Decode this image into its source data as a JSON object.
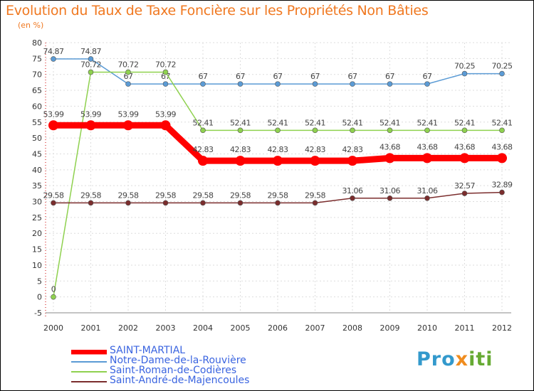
{
  "chart_data": {
    "type": "line",
    "title": "Evolution du Taux de Taxe Foncière sur les Propriétés Non Bâties",
    "subtitle": "(en %)",
    "categories": [
      "2000",
      "2001",
      "2002",
      "2003",
      "2004",
      "2005",
      "2006",
      "2007",
      "2008",
      "2009",
      "2010",
      "2011",
      "2012"
    ],
    "ylim": [
      -5,
      80
    ],
    "yticks": [
      -5,
      0,
      5,
      10,
      15,
      20,
      25,
      30,
      35,
      40,
      45,
      50,
      55,
      60,
      65,
      70,
      75,
      80
    ],
    "grid": true,
    "series": [
      {
        "name": "Notre-Dame-de-la-Rouvière",
        "color": "#5b9bd5",
        "values": [
          74.87,
          74.87,
          67,
          67,
          67,
          67,
          67,
          67,
          67,
          67,
          67,
          70.25,
          70.25
        ],
        "labels": [
          "74.87",
          "74.87",
          "67",
          "67",
          "67",
          "67",
          "67",
          "67",
          "67",
          "67",
          "67",
          "70.25",
          "70.25"
        ]
      },
      {
        "name": "Saint-Roman-de-Codières",
        "color": "#8fd14f",
        "values": [
          0,
          70.72,
          70.72,
          70.72,
          52.41,
          52.41,
          52.41,
          52.41,
          52.41,
          52.41,
          52.41,
          52.41,
          52.41
        ],
        "labels": [
          "0",
          "70.72",
          "70.72",
          "70.72",
          "52.41",
          "52.41",
          "52.41",
          "52.41",
          "52.41",
          "52.41",
          "52.41",
          "52.41",
          "52.41"
        ]
      },
      {
        "name": "SAINT-MARTIAL",
        "color": "#ff0000",
        "values": [
          53.99,
          53.99,
          53.99,
          53.99,
          42.83,
          42.83,
          42.83,
          42.83,
          42.83,
          43.68,
          43.68,
          43.68,
          43.68
        ],
        "labels": [
          "53.99",
          "53.99",
          "53.99",
          "53.99",
          "42.83",
          "42.83",
          "42.83",
          "42.83",
          "42.83",
          "43.68",
          "43.68",
          "43.68",
          "43.68"
        ]
      },
      {
        "name": "Saint-André-de-Majencoules",
        "color": "#7b2d2d",
        "values": [
          29.58,
          29.58,
          29.58,
          29.58,
          29.58,
          29.58,
          29.58,
          29.58,
          31.06,
          31.06,
          31.06,
          32.57,
          32.89
        ],
        "labels": [
          "29.58",
          "29.58",
          "29.58",
          "29.58",
          "29.58",
          "29.58",
          "29.58",
          "29.58",
          "31.06",
          "31.06",
          "31.06",
          "32.57",
          "32.89"
        ]
      }
    ],
    "legend": [
      "SAINT-MARTIAL",
      "Notre-Dame-de-la-Rouvière",
      "Saint-Roman-de-Codières",
      "Saint-André-de-Majencoules"
    ],
    "legend_position": "bottom-left"
  },
  "logo": {
    "part1": "Pro",
    "part2": "x",
    "part3": "iti"
  }
}
